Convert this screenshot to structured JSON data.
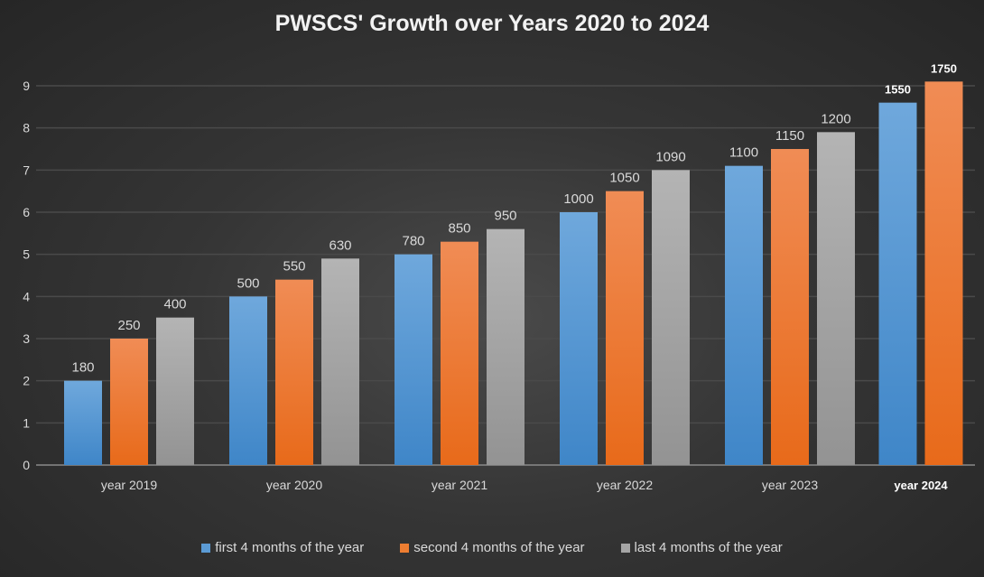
{
  "chart_data": {
    "type": "bar",
    "title": "PWSCS' Growth over  Years 2020 to 2024",
    "xlabel": "",
    "ylabel": "",
    "ylim": [
      0,
      9
    ],
    "yticks": [
      "0",
      "1",
      "2",
      "3",
      "4",
      "5",
      "6",
      "7",
      "8",
      "9"
    ],
    "grid": true,
    "legend_position": "bottom",
    "categories": [
      "year 2019",
      "year 2020",
      "year 2021",
      "year 2022",
      "year 2023",
      "year 2024"
    ],
    "series": [
      {
        "name": "first 4 months of the year",
        "color": "#5b9bd5",
        "values": [
          2,
          4,
          5,
          6,
          7.1,
          8.6
        ],
        "labels": [
          "180",
          "500",
          "780",
          "1000",
          "1100",
          "1550"
        ]
      },
      {
        "name": "second 4 months of the year",
        "color": "#ed7d31",
        "values": [
          3,
          4.4,
          5.3,
          6.5,
          7.5,
          9.1
        ],
        "labels": [
          "250",
          "550",
          "850",
          "1050",
          "1150",
          "1750"
        ]
      },
      {
        "name": "last 4 months of the year",
        "color": "#a5a5a5",
        "values": [
          3.5,
          4.9,
          5.6,
          7,
          7.9,
          null
        ],
        "labels": [
          "400",
          "630",
          "950",
          "1090",
          "1200",
          null
        ]
      }
    ]
  }
}
